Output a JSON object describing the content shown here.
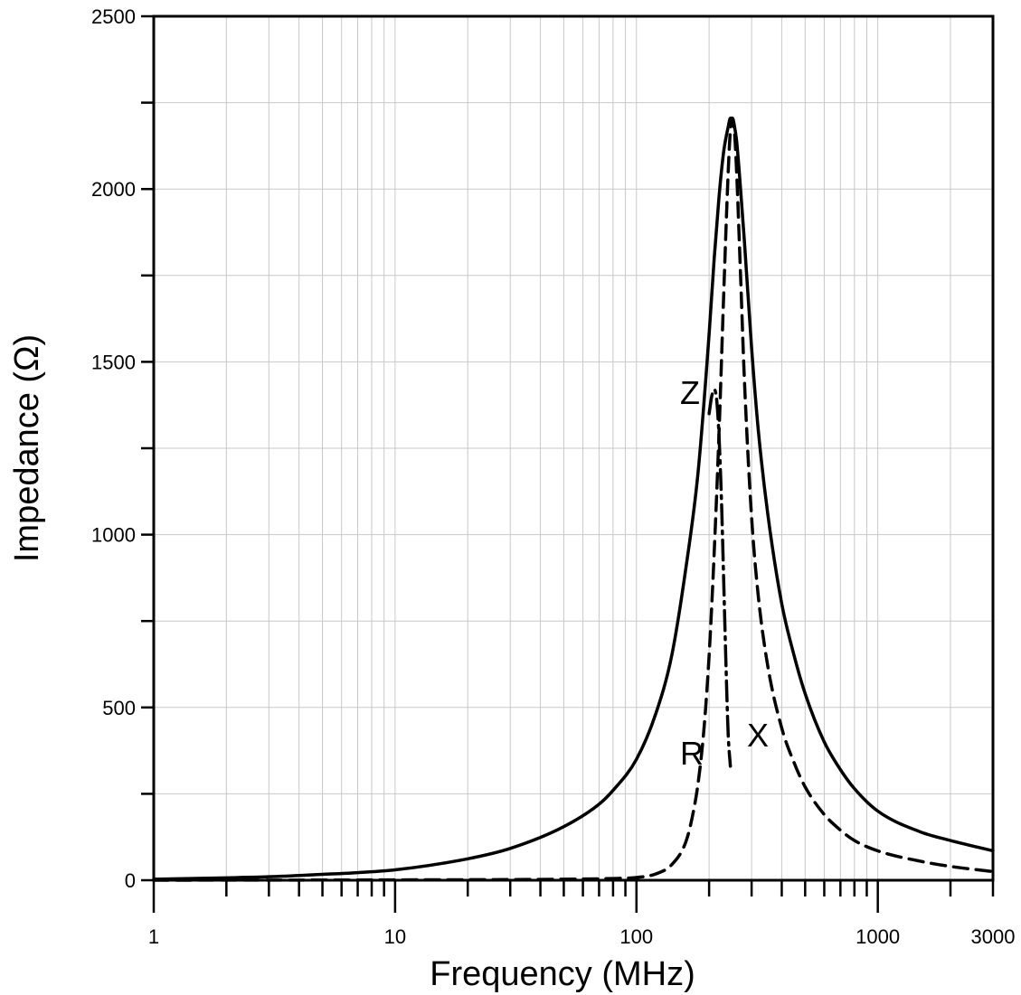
{
  "chart_data": {
    "type": "line",
    "xlabel": "Frequency (MHz)",
    "ylabel": "Impedance (Ω)",
    "x_scale": "log",
    "xlim": [
      1,
      3000
    ],
    "ylim": [
      0,
      2500
    ],
    "x_ticks": [
      1,
      10,
      100,
      1000,
      3000
    ],
    "x_tick_labels": [
      "1",
      "10",
      "100",
      "1000",
      "3000"
    ],
    "y_ticks": [
      0,
      500,
      1000,
      1500,
      2000,
      2500
    ],
    "y_tick_labels": [
      "0",
      "500",
      "1000",
      "1500",
      "2000",
      "2500"
    ],
    "grid": true,
    "series": [
      {
        "name": "Z",
        "style": "solid",
        "x": [
          1,
          2,
          3,
          5,
          7,
          10,
          20,
          30,
          50,
          70,
          80,
          100,
          120,
          140,
          160,
          180,
          200,
          210,
          220,
          230,
          240,
          245,
          250,
          255,
          260,
          270,
          280,
          300,
          320,
          350,
          400,
          450,
          500,
          600,
          700,
          800,
          1000,
          1500,
          2000,
          3000
        ],
        "values": [
          3,
          7,
          10,
          17,
          22,
          30,
          62,
          92,
          155,
          220,
          260,
          350,
          480,
          650,
          900,
          1180,
          1580,
          1800,
          1980,
          2110,
          2180,
          2205,
          2205,
          2180,
          2140,
          2000,
          1850,
          1540,
          1300,
          1060,
          800,
          650,
          540,
          400,
          320,
          265,
          200,
          140,
          115,
          85
        ]
      },
      {
        "name": "R",
        "style": "dashed",
        "x": [
          1,
          10,
          50,
          80,
          100,
          120,
          140,
          160,
          170,
          180,
          190,
          200,
          210,
          220,
          230,
          240,
          245,
          250,
          255,
          260,
          270,
          280,
          300,
          320,
          350,
          400,
          450,
          500,
          600,
          700,
          800,
          1000,
          1500,
          2000,
          3000
        ],
        "values": [
          0,
          1,
          3,
          5,
          8,
          18,
          45,
          110,
          180,
          280,
          430,
          650,
          950,
          1300,
          1700,
          2050,
          2170,
          2200,
          2160,
          2050,
          1750,
          1450,
          1050,
          820,
          620,
          440,
          340,
          270,
          190,
          145,
          115,
          85,
          55,
          40,
          25
        ]
      },
      {
        "name": "X",
        "style": "dash-dot",
        "x": [
          200,
          205,
          210,
          215,
          220,
          225,
          230,
          235,
          240,
          245
        ],
        "values": [
          1350,
          1400,
          1420,
          1390,
          1280,
          1100,
          860,
          620,
          420,
          330
        ]
      }
    ],
    "annotations": [
      "Z",
      "R",
      "X"
    ]
  }
}
